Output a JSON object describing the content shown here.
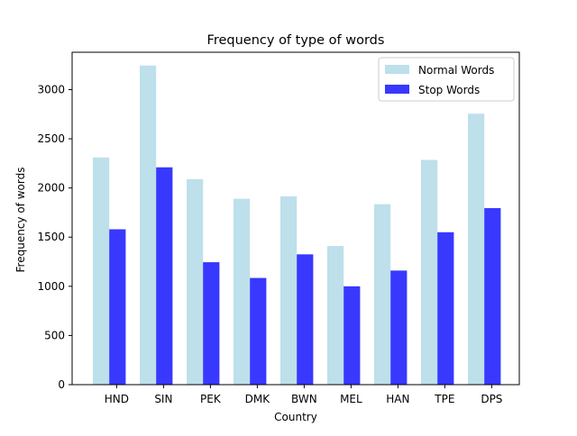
{
  "chart_data": {
    "type": "bar",
    "title": "Frequency of type of words",
    "xlabel": "Country",
    "ylabel": "Frequency of words",
    "categories": [
      "HND",
      "SIN",
      "PEK",
      "DMK",
      "BWN",
      "MEL",
      "HAN",
      "TPE",
      "DPS"
    ],
    "series": [
      {
        "name": "Normal Words",
        "color": "#add8e6",
        "values": [
          2310,
          3245,
          2090,
          1890,
          1915,
          1410,
          1835,
          2285,
          2755
        ]
      },
      {
        "name": "Stop Words",
        "color": "#0000ff",
        "values": [
          1580,
          2210,
          1245,
          1085,
          1325,
          1000,
          1160,
          1550,
          1795
        ]
      }
    ],
    "ylim": [
      0,
      3380
    ],
    "yticks": [
      0,
      500,
      1000,
      1500,
      2000,
      2500,
      3000
    ],
    "grid": false,
    "legend_position": "top-right"
  }
}
